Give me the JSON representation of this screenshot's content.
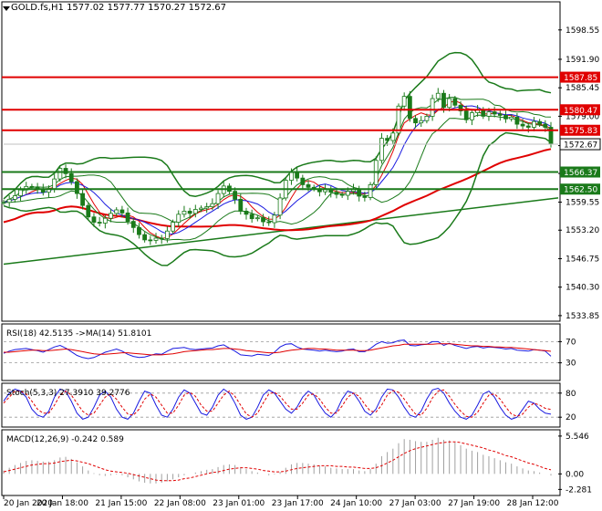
{
  "header": {
    "symbol": "GOLD.fs,H1",
    "ohlc": "1577.02 1577.77 1570.27 1572.67"
  },
  "chart_data": [
    {
      "panel": "price",
      "type": "candlestick",
      "x_tick_labels": [
        "20 Jan 2020",
        "20 Jan 18:00",
        "21 Jan 15:00",
        "22 Jan 08:00",
        "23 Jan 01:00",
        "23 Jan 17:00",
        "24 Jan 10:00",
        "27 Jan 03:00",
        "27 Jan 19:00",
        "28 Jan 12:00"
      ],
      "y_ticks": [
        1598.55,
        1591.9,
        1585.45,
        1579.0,
        1572.35,
        1566.05,
        1559.55,
        1553.2,
        1546.75,
        1540.3,
        1533.85
      ],
      "ylim": [
        1533.0,
        1604.5
      ],
      "current_price": 1572.67,
      "horizontal_levels": [
        {
          "value": 1587.85,
          "label": "1587.85",
          "color": "#e00000"
        },
        {
          "value": 1580.47,
          "label": "1580.47",
          "color": "#e00000"
        },
        {
          "value": 1575.83,
          "label": "1575.83",
          "color": "#e00000"
        },
        {
          "value": 1566.37,
          "label": "1566.37",
          "color": "#1a7a1a"
        },
        {
          "value": 1562.5,
          "label": "1562.50",
          "color": "#1a7a1a"
        }
      ],
      "trendline": {
        "color": "#1a7a1a",
        "start": [
          0,
          1545.5
        ],
        "end": [
          1,
          1560.5
        ]
      },
      "close_series": [
        1559.5,
        1560.2,
        1561.0,
        1562.3,
        1563.1,
        1563.0,
        1562.5,
        1561.8,
        1562.6,
        1564.8,
        1567.2,
        1566.0,
        1564.2,
        1561.5,
        1558.8,
        1556.2,
        1555.0,
        1554.8,
        1555.9,
        1557.0,
        1557.8,
        1557.1,
        1555.2,
        1553.8,
        1552.2,
        1551.0,
        1550.9,
        1551.4,
        1551.3,
        1553.0,
        1555.0,
        1556.8,
        1557.5,
        1557.0,
        1557.9,
        1558.2,
        1558.5,
        1559.2,
        1561.5,
        1563.2,
        1562.0,
        1560.2,
        1557.5,
        1556.8,
        1555.8,
        1556.0,
        1555.1,
        1554.9,
        1556.6,
        1560.5,
        1564.5,
        1566.3,
        1565.0,
        1563.5,
        1562.9,
        1562.6,
        1561.9,
        1562.4,
        1561.8,
        1561.3,
        1561.1,
        1562.0,
        1562.5,
        1560.9,
        1560.6,
        1563.5,
        1569.0,
        1574.0,
        1573.5,
        1575.2,
        1581.3,
        1583.5,
        1578.5,
        1577.5,
        1578.0,
        1579.0,
        1583.0,
        1584.2,
        1581.0,
        1583.0,
        1581.5,
        1580.2,
        1578.2,
        1579.8,
        1580.5,
        1579.0,
        1580.0,
        1579.5,
        1579.2,
        1578.4,
        1578.8,
        1577.2,
        1576.8,
        1576.5,
        1577.8,
        1577.2,
        1576.5,
        1572.67
      ],
      "price_color": "#1a7a1a",
      "moving_averages": [
        {
          "name": "MA fast",
          "color": "#e00000"
        },
        {
          "name": "MA slow",
          "color": "#e00000"
        },
        {
          "name": "Bollinger bands",
          "color": "#1a7a1a"
        }
      ]
    },
    {
      "panel": "rsi",
      "type": "line",
      "title": "RSI(18) 42.5135  ->MA(14) 51.8101",
      "y_ticks": [
        70,
        30
      ],
      "ylim": [
        0,
        100
      ],
      "series": [
        {
          "values": [
            48,
            52,
            55,
            56,
            57,
            55,
            53,
            50,
            55,
            60,
            63,
            58,
            51,
            44,
            40,
            38,
            40,
            45,
            50,
            53,
            56,
            52,
            46,
            42,
            40,
            41,
            44,
            47,
            46,
            52,
            57,
            58,
            59,
            56,
            55,
            56,
            57,
            58,
            62,
            64,
            58,
            52,
            45,
            44,
            43,
            46,
            45,
            44,
            50,
            60,
            65,
            66,
            60,
            56,
            55,
            54,
            52,
            54,
            52,
            51,
            52,
            55,
            56,
            51,
            51,
            57,
            65,
            70,
            67,
            68,
            72,
            73,
            63,
            62,
            64,
            65,
            70,
            70,
            63,
            67,
            63,
            60,
            57,
            60,
            61,
            58,
            60,
            59,
            58,
            56,
            57,
            54,
            53,
            52,
            55,
            54,
            52,
            42.5
          ]
        },
        {
          "values": [
            50,
            50,
            51,
            52,
            53,
            54,
            54,
            53,
            53,
            54,
            55,
            56,
            55,
            53,
            51,
            49,
            47,
            46,
            46,
            47,
            48,
            49,
            49,
            48,
            47,
            46,
            45,
            45,
            45,
            46,
            47,
            49,
            51,
            52,
            53,
            54,
            55,
            55,
            56,
            57,
            57,
            56,
            55,
            53,
            52,
            51,
            50,
            49,
            49,
            50,
            52,
            54,
            55,
            56,
            57,
            57,
            56,
            56,
            55,
            54,
            54,
            54,
            54,
            53,
            53,
            54,
            56,
            58,
            60,
            62,
            63,
            65,
            65,
            65,
            65,
            65,
            65,
            66,
            66,
            66,
            65,
            64,
            63,
            62,
            62,
            61,
            61,
            60,
            60,
            59,
            59,
            58,
            57,
            56,
            55,
            54,
            53,
            51.8
          ]
        }
      ]
    },
    {
      "panel": "stochastic",
      "type": "line",
      "title": "Stoch(5,3,3) 27.3910 39.2776",
      "y_ticks": [
        80,
        20
      ],
      "ylim": [
        0,
        100
      ],
      "series": [
        {
          "values": [
            60,
            80,
            90,
            85,
            70,
            40,
            25,
            20,
            35,
            70,
            90,
            85,
            60,
            30,
            15,
            20,
            45,
            75,
            85,
            70,
            40,
            20,
            15,
            30,
            60,
            85,
            80,
            50,
            25,
            20,
            40,
            70,
            88,
            80,
            55,
            30,
            25,
            45,
            75,
            90,
            80,
            55,
            25,
            15,
            20,
            45,
            75,
            88,
            80,
            60,
            40,
            30,
            45,
            70,
            85,
            75,
            50,
            30,
            20,
            35,
            65,
            85,
            80,
            60,
            35,
            25,
            40,
            70,
            90,
            88,
            70,
            45,
            25,
            20,
            35,
            65,
            88,
            92,
            80,
            55,
            35,
            20,
            15,
            25,
            50,
            78,
            85,
            70,
            45,
            25,
            15,
            20,
            40,
            60,
            55,
            40,
            30,
            27.4
          ]
        },
        {
          "values": [
            55,
            70,
            85,
            85,
            78,
            60,
            40,
            30,
            30,
            50,
            75,
            85,
            75,
            55,
            35,
            25,
            30,
            50,
            70,
            78,
            65,
            45,
            28,
            25,
            40,
            65,
            78,
            70,
            50,
            30,
            30,
            50,
            75,
            82,
            72,
            50,
            35,
            35,
            55,
            75,
            85,
            72,
            50,
            28,
            20,
            30,
            55,
            78,
            82,
            72,
            55,
            40,
            40,
            55,
            75,
            78,
            65,
            45,
            30,
            30,
            48,
            70,
            80,
            72,
            52,
            35,
            33,
            50,
            75,
            86,
            82,
            65,
            45,
            28,
            25,
            42,
            68,
            85,
            88,
            72,
            52,
            35,
            22,
            20,
            32,
            55,
            75,
            78,
            65,
            45,
            28,
            22,
            28,
            45,
            55,
            50,
            42,
            39.3
          ]
        }
      ]
    },
    {
      "panel": "macd",
      "type": "bar",
      "title": "MACD(12,26,9) -0.242 0.589",
      "y_ticks": [
        5.546,
        0.0,
        -2.281
      ],
      "ylim": [
        -2.9,
        6.2
      ],
      "histogram": [
        0.5,
        0.9,
        1.3,
        1.6,
        1.9,
        2.0,
        1.9,
        1.8,
        1.8,
        2.0,
        2.4,
        2.5,
        2.2,
        1.7,
        1.1,
        0.5,
        0.1,
        -0.2,
        -0.3,
        -0.2,
        -0.1,
        -0.2,
        -0.5,
        -0.8,
        -1.1,
        -1.3,
        -1.4,
        -1.4,
        -1.3,
        -1.1,
        -0.8,
        -0.5,
        -0.2,
        0.0,
        0.2,
        0.4,
        0.6,
        0.7,
        1.0,
        1.3,
        1.4,
        1.3,
        1.0,
        0.7,
        0.4,
        0.2,
        0.0,
        -0.2,
        -0.1,
        0.3,
        0.9,
        1.4,
        1.6,
        1.6,
        1.5,
        1.4,
        1.2,
        1.1,
        0.9,
        0.8,
        0.7,
        0.7,
        0.7,
        0.5,
        0.4,
        0.7,
        1.5,
        2.6,
        3.2,
        3.7,
        4.5,
        5.1,
        5.0,
        4.8,
        4.7,
        4.7,
        5.0,
        5.3,
        5.0,
        4.9,
        4.6,
        4.2,
        3.7,
        3.4,
        3.2,
        2.8,
        2.6,
        2.3,
        2.0,
        1.7,
        1.5,
        1.1,
        0.8,
        0.5,
        0.4,
        0.2,
        0.0,
        -0.242
      ],
      "signal": [
        0.3,
        0.5,
        0.7,
        0.9,
        1.1,
        1.3,
        1.4,
        1.5,
        1.5,
        1.6,
        1.8,
        1.9,
        2.0,
        1.9,
        1.7,
        1.5,
        1.2,
        0.9,
        0.6,
        0.4,
        0.3,
        0.2,
        0.1,
        -0.1,
        -0.3,
        -0.5,
        -0.7,
        -0.9,
        -1.0,
        -1.0,
        -1.0,
        -0.9,
        -0.7,
        -0.6,
        -0.4,
        -0.2,
        0.0,
        0.2,
        0.3,
        0.5,
        0.7,
        0.8,
        0.9,
        0.9,
        0.8,
        0.7,
        0.5,
        0.4,
        0.3,
        0.3,
        0.4,
        0.6,
        0.8,
        0.9,
        1.0,
        1.1,
        1.2,
        1.2,
        1.2,
        1.1,
        1.1,
        1.0,
        1.0,
        0.9,
        0.8,
        0.8,
        0.9,
        1.2,
        1.6,
        2.0,
        2.5,
        3.0,
        3.4,
        3.7,
        3.9,
        4.1,
        4.3,
        4.5,
        4.6,
        4.7,
        4.7,
        4.6,
        4.4,
        4.2,
        4.0,
        3.8,
        3.5,
        3.3,
        3.0,
        2.7,
        2.5,
        2.2,
        1.9,
        1.6,
        1.4,
        1.1,
        0.8,
        0.589
      ],
      "histogram_color": "#a0a0a0",
      "signal_color": "#e00000"
    }
  ]
}
